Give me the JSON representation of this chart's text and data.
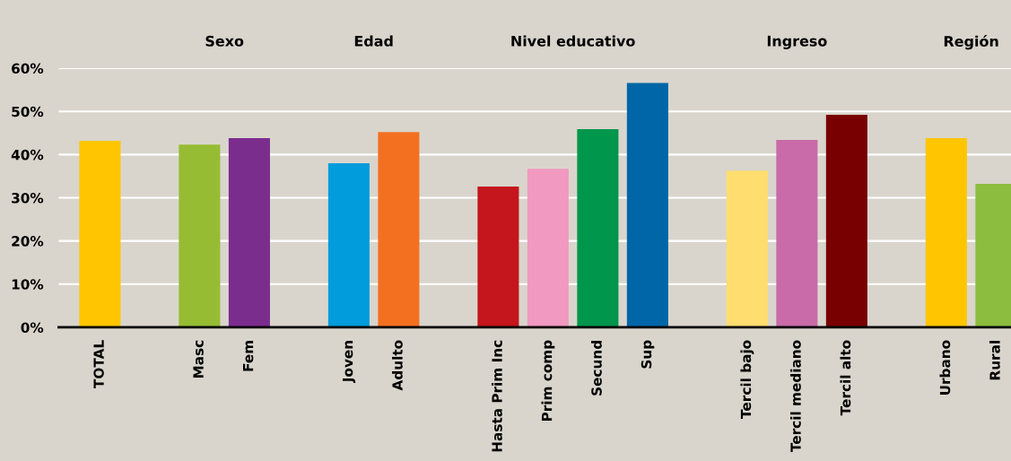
{
  "chart_data": {
    "type": "bar",
    "categories": [
      "TOTAL",
      null,
      "Masc",
      "Fem",
      null,
      "Joven",
      "Adulto",
      null,
      "Hasta Prim Inc",
      "Prim comp",
      "Secund",
      "Sup",
      null,
      "Tercil bajo",
      "Tercil mediano",
      "Tercil alto",
      null,
      "Urbano",
      "Rural"
    ],
    "values": [
      43.2,
      null,
      42.3,
      43.8,
      null,
      38.0,
      45.2,
      null,
      32.6,
      36.7,
      45.9,
      56.6,
      null,
      36.3,
      43.4,
      49.2,
      null,
      43.8,
      33.2
    ],
    "colors": [
      "#ffc600",
      null,
      "#96bc33",
      "#7b2d8e",
      null,
      "#009cdc",
      "#f37021",
      null,
      "#c4161c",
      "#f199c0",
      "#00964b",
      "#0066a8",
      null,
      "#ffdd6f",
      "#c86ba8",
      "#780000",
      null,
      "#ffc600",
      "#8cbd3f"
    ],
    "annotations": [
      "Sexo",
      "Edad",
      "Nivel educativo",
      "Ingreso",
      "Región"
    ],
    "ylim": [
      0,
      60
    ],
    "yticks": [
      {
        "value": 0,
        "label": "0%"
      },
      {
        "value": 10,
        "label": "10%"
      },
      {
        "value": 20,
        "label": "20%"
      },
      {
        "value": 30,
        "label": "30%"
      },
      {
        "value": 40,
        "label": "40%"
      },
      {
        "value": 50,
        "label": "50%"
      },
      {
        "value": 60,
        "label": "60%"
      }
    ],
    "grid": "y",
    "legend": false
  }
}
